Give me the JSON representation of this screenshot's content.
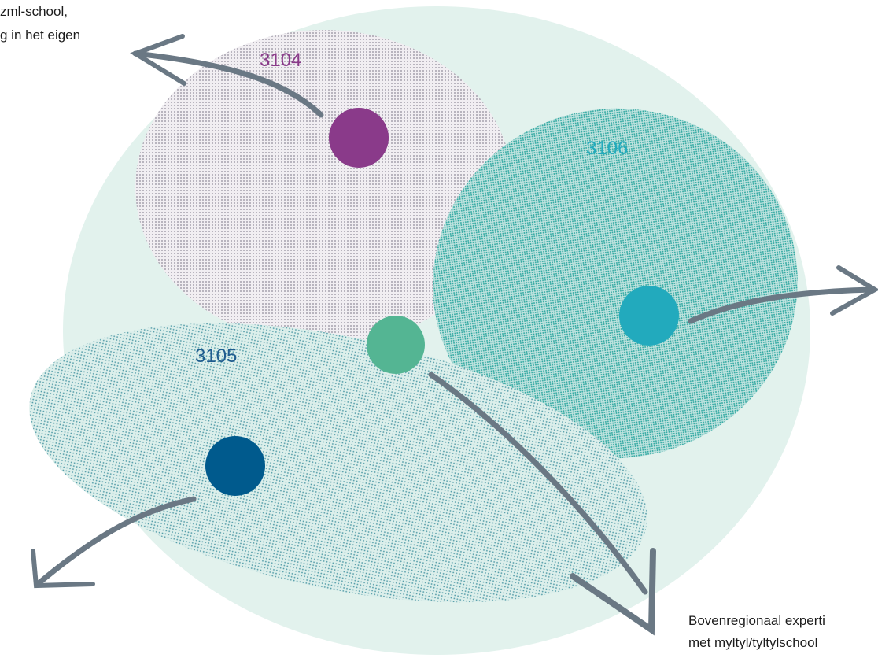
{
  "notes": {
    "top_left": [
      "zml-school,",
      "g in het eigen"
    ],
    "bottom_right": [
      "Bovenregionaal experti",
      "met myltyl/tyltylschool"
    ]
  },
  "regions": [
    {
      "label": "3104"
    },
    {
      "label": "3106"
    },
    {
      "label": "3105"
    }
  ]
}
